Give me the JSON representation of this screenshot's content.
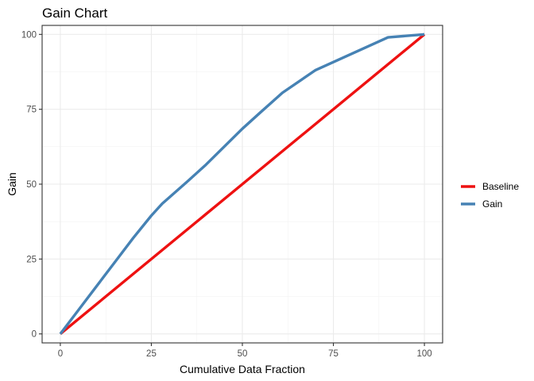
{
  "chart_data": {
    "type": "line",
    "title": "Gain Chart",
    "xlabel": "Cumulative Data Fraction",
    "ylabel": "Gain",
    "xlim": [
      -5,
      105
    ],
    "ylim": [
      -3,
      103
    ],
    "x_ticks": [
      0,
      25,
      50,
      75,
      100
    ],
    "y_ticks": [
      0,
      25,
      50,
      75,
      100
    ],
    "x_tick_labels": [
      "0",
      "25",
      "50",
      "75",
      "100"
    ],
    "y_tick_labels": [
      "0",
      "25",
      "50",
      "75",
      "100"
    ],
    "grid": true,
    "legend_position": "right",
    "series": [
      {
        "name": "Baseline",
        "color": "#ee1111",
        "points": [
          [
            0,
            0
          ],
          [
            100,
            100
          ]
        ]
      },
      {
        "name": "Gain",
        "color": "#4682b4",
        "points": [
          [
            0,
            0
          ],
          [
            5,
            8
          ],
          [
            10,
            16
          ],
          [
            15,
            24
          ],
          [
            20,
            32
          ],
          [
            25,
            39.5
          ],
          [
            28,
            43.5
          ],
          [
            35,
            51
          ],
          [
            40,
            56.5
          ],
          [
            50,
            68.5
          ],
          [
            55,
            74
          ],
          [
            61,
            80.5
          ],
          [
            70,
            88
          ],
          [
            80,
            93.5
          ],
          [
            90,
            99
          ],
          [
            100,
            100
          ]
        ]
      }
    ]
  }
}
